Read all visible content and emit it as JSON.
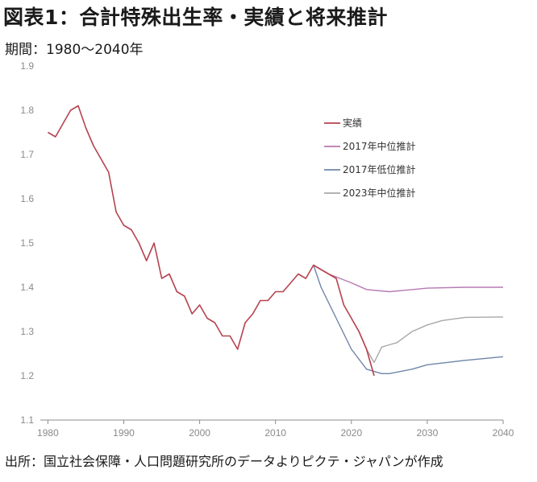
{
  "figure": {
    "title": "図表1：合計特殊出生率・実績と将来推計",
    "subtitle": "期間：1980～2040年",
    "source": "出所：国立社会保障・人口問題研究所のデータよりピクテ・ジャパンが作成"
  },
  "chart_data": {
    "type": "line",
    "title": "図表1：合計特殊出生率・実績と将来推計",
    "subtitle": "期間：1980～2040年",
    "xlabel": "",
    "ylabel": "",
    "xlim": [
      1979,
      2040
    ],
    "ylim": [
      1.1,
      1.9
    ],
    "xticks": [
      1980,
      1990,
      2000,
      2010,
      2020,
      2030,
      2040
    ],
    "yticks": [
      1.1,
      1.2,
      1.3,
      1.4,
      1.5,
      1.6,
      1.7,
      1.8,
      1.9
    ],
    "grid": false,
    "legend_position": "top-right",
    "series": [
      {
        "name": "実績",
        "color": "#b5434f",
        "x": [
          1980,
          1981,
          1982,
          1983,
          1984,
          1985,
          1986,
          1987,
          1988,
          1989,
          1990,
          1991,
          1992,
          1993,
          1994,
          1995,
          1996,
          1997,
          1998,
          1999,
          2000,
          2001,
          2002,
          2003,
          2004,
          2005,
          2006,
          2007,
          2008,
          2009,
          2010,
          2011,
          2012,
          2013,
          2014,
          2015,
          2016,
          2017,
          2018,
          2019,
          2020,
          2021,
          2022,
          2023
        ],
        "y": [
          1.75,
          1.74,
          1.77,
          1.8,
          1.81,
          1.76,
          1.72,
          1.69,
          1.66,
          1.57,
          1.54,
          1.53,
          1.5,
          1.46,
          1.5,
          1.42,
          1.43,
          1.39,
          1.38,
          1.34,
          1.36,
          1.33,
          1.32,
          1.29,
          1.29,
          1.26,
          1.32,
          1.34,
          1.37,
          1.37,
          1.39,
          1.39,
          1.41,
          1.43,
          1.42,
          1.45,
          1.44,
          1.43,
          1.42,
          1.36,
          1.33,
          1.3,
          1.26,
          1.2
        ]
      },
      {
        "name": "2017年中位推計",
        "color": "#b57ab3",
        "x": [
          2015,
          2017,
          2020,
          2022,
          2025,
          2030,
          2035,
          2040
        ],
        "y": [
          1.45,
          1.43,
          1.41,
          1.395,
          1.39,
          1.398,
          1.4,
          1.4
        ]
      },
      {
        "name": "2017年低位推計",
        "color": "#6f86a6",
        "x": [
          2015,
          2016,
          2018,
          2020,
          2022,
          2024,
          2025,
          2028,
          2030,
          2035,
          2040
        ],
        "y": [
          1.45,
          1.4,
          1.33,
          1.26,
          1.215,
          1.205,
          1.205,
          1.215,
          1.225,
          1.235,
          1.243
        ]
      },
      {
        "name": "2023年中位推計",
        "color": "#a8a8a8",
        "x": [
          2020,
          2021,
          2022,
          2023,
          2024,
          2025,
          2026,
          2028,
          2030,
          2032,
          2035,
          2040
        ],
        "y": [
          1.33,
          1.3,
          1.26,
          1.23,
          1.265,
          1.27,
          1.275,
          1.3,
          1.315,
          1.325,
          1.332,
          1.333
        ]
      }
    ]
  }
}
